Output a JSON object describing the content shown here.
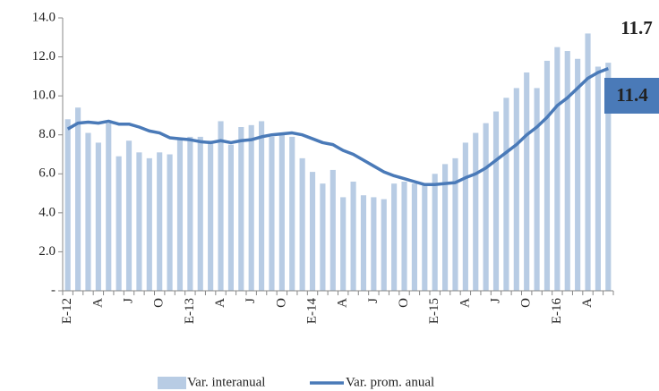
{
  "chart_data": {
    "type": "bar-line",
    "categories": [
      "E-12",
      null,
      null,
      "A",
      null,
      null,
      "J",
      null,
      null,
      "O",
      null,
      null,
      "E-13",
      null,
      null,
      "A",
      null,
      null,
      "J",
      null,
      null,
      "O",
      null,
      null,
      "E-14",
      null,
      null,
      "A",
      null,
      null,
      "J",
      null,
      null,
      "O",
      null,
      null,
      "E-15",
      null,
      null,
      "A",
      null,
      null,
      "J",
      null,
      null,
      "O",
      null,
      null,
      "E-16",
      null,
      null,
      "A",
      null,
      null
    ],
    "series": [
      {
        "name": "Var. interanual",
        "type": "bar",
        "color": "#b8cce4",
        "values": [
          8.8,
          9.4,
          8.1,
          7.6,
          8.6,
          6.9,
          7.7,
          7.1,
          6.8,
          7.1,
          7.0,
          7.8,
          7.9,
          7.9,
          7.7,
          8.7,
          7.5,
          8.4,
          8.5,
          8.7,
          7.9,
          8.0,
          7.9,
          6.8,
          6.1,
          5.5,
          6.2,
          4.8,
          5.6,
          4.9,
          4.8,
          4.7,
          5.5,
          5.6,
          5.5,
          5.4,
          6.0,
          6.5,
          6.8,
          7.6,
          8.1,
          8.6,
          9.2,
          9.9,
          10.4,
          11.2,
          10.4,
          11.8,
          12.5,
          12.3,
          11.9,
          13.2,
          11.5,
          11.7
        ],
        "value_labels": [
          null,
          null,
          null,
          null,
          null,
          null,
          null,
          null,
          null,
          null,
          null,
          null,
          null,
          null,
          null,
          null,
          null,
          null,
          null,
          null,
          null,
          null,
          null,
          null,
          null,
          null,
          null,
          null,
          null,
          null,
          null,
          null,
          null,
          null,
          null,
          null,
          null,
          null,
          null,
          null,
          null,
          null,
          null,
          null,
          null,
          null,
          null,
          null,
          null,
          null,
          null,
          null,
          null,
          "11.7"
        ]
      },
      {
        "name": "Var. prom. anual",
        "type": "line",
        "color": "#4a7ab8",
        "values": [
          8.3,
          8.6,
          8.65,
          8.6,
          8.7,
          8.55,
          8.55,
          8.4,
          8.2,
          8.1,
          7.85,
          7.8,
          7.75,
          7.65,
          7.6,
          7.7,
          7.6,
          7.7,
          7.75,
          7.9,
          8.0,
          8.05,
          8.1,
          8.0,
          7.8,
          7.6,
          7.5,
          7.2,
          7.0,
          6.7,
          6.4,
          6.1,
          5.9,
          5.75,
          5.6,
          5.45,
          5.45,
          5.5,
          5.55,
          5.8,
          6.0,
          6.3,
          6.7,
          7.1,
          7.5,
          8.0,
          8.4,
          8.9,
          9.5,
          9.9,
          10.4,
          10.9,
          11.2,
          11.4
        ],
        "value_labels": [
          null,
          null,
          null,
          null,
          null,
          null,
          null,
          null,
          null,
          null,
          null,
          null,
          null,
          null,
          null,
          null,
          null,
          null,
          null,
          null,
          null,
          null,
          null,
          null,
          null,
          null,
          null,
          null,
          null,
          null,
          null,
          null,
          null,
          null,
          null,
          null,
          null,
          null,
          null,
          null,
          null,
          null,
          null,
          null,
          null,
          null,
          null,
          null,
          null,
          null,
          null,
          null,
          null,
          "11.4"
        ]
      }
    ],
    "ylim": [
      0,
      14
    ],
    "yticks": [
      {
        "value": 0,
        "label": "-"
      },
      {
        "value": 2,
        "label": "2.0"
      },
      {
        "value": 4,
        "label": "4.0"
      },
      {
        "value": 6,
        "label": "6.0"
      },
      {
        "value": 8,
        "label": "8.0"
      },
      {
        "value": 10,
        "label": "10.0"
      },
      {
        "value": 12,
        "label": "12.0"
      },
      {
        "value": 14,
        "label": "14.0"
      }
    ],
    "legend": "bottom"
  }
}
